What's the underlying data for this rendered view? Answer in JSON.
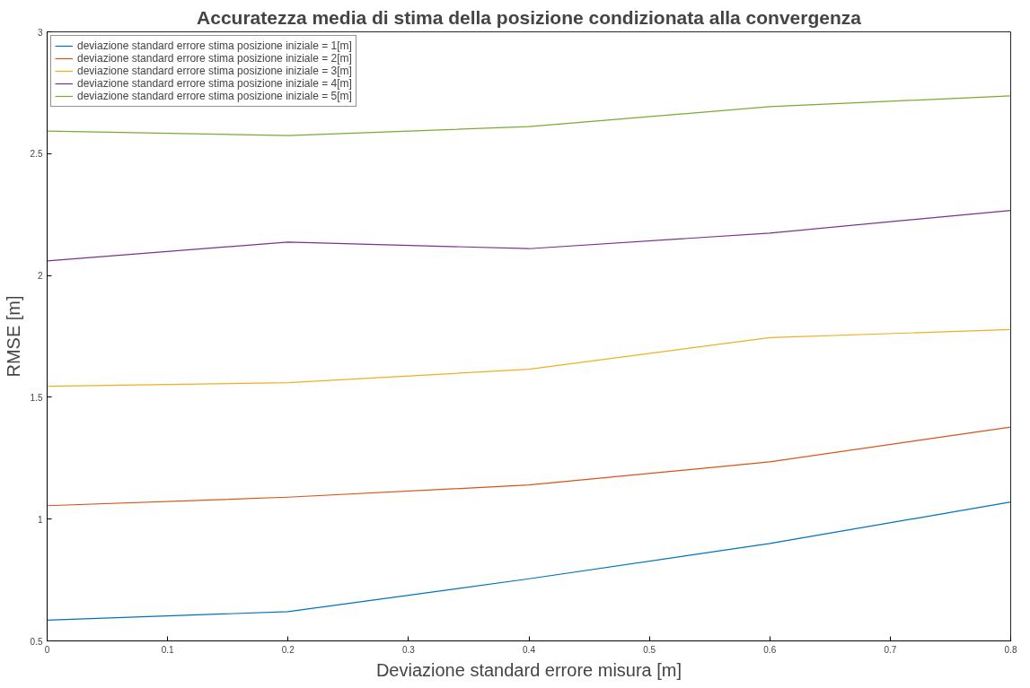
{
  "chart_data": {
    "type": "line",
    "title": "Accuratezza media di stima della posizione condizionata alla convergenza",
    "xlabel": "Deviazione standard errore misura [m]",
    "ylabel": "RMSE [m]",
    "x": [
      0,
      0.2,
      0.4,
      0.6,
      0.8
    ],
    "series": [
      {
        "name": "deviazione standard errore stima posizione iniziale = 1[m]",
        "color": "#0072bd",
        "values": [
          0.585,
          0.62,
          0.755,
          0.9,
          1.07
        ]
      },
      {
        "name": "deviazione standard errore stima posizione iniziale = 2[m]",
        "color": "#d95319",
        "values": [
          1.055,
          1.09,
          1.14,
          1.235,
          1.378
        ]
      },
      {
        "name": "deviazione standard errore stima posizione iniziale = 3[m]",
        "color": "#edb120",
        "values": [
          1.545,
          1.56,
          1.615,
          1.745,
          1.778
        ]
      },
      {
        "name": "deviazione standard errore stima posizione iniziale = 4[m]",
        "color": "#7e2f8e",
        "values": [
          2.06,
          2.137,
          2.11,
          2.174,
          2.267
        ]
      },
      {
        "name": "deviazione standard errore stima posizione iniziale = 5[m]",
        "color": "#77ac30",
        "values": [
          2.593,
          2.574,
          2.611,
          2.693,
          2.737
        ]
      }
    ],
    "xlim": [
      0,
      0.8
    ],
    "xticks": [
      0,
      0.1,
      0.2,
      0.3,
      0.4,
      0.5,
      0.6,
      0.7,
      0.8
    ],
    "ylim": [
      0.5,
      3
    ],
    "yticks": [
      0.5,
      1,
      1.5,
      2,
      2.5,
      3
    ],
    "grid": false,
    "legend": "top left",
    "marker": "none",
    "line_style": "solid"
  }
}
